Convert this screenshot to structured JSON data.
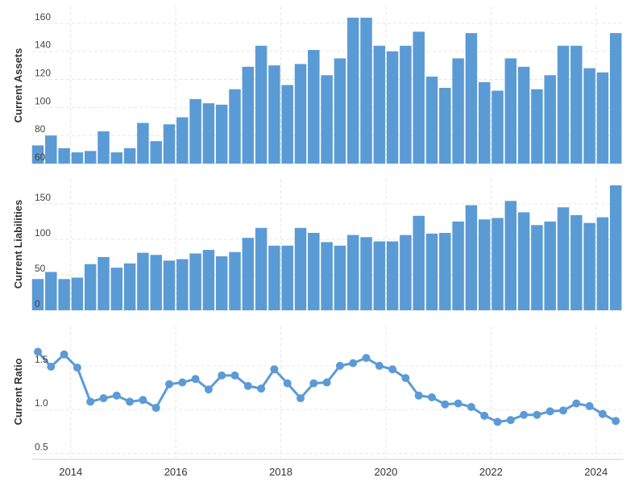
{
  "chart_data": [
    {
      "type": "bar",
      "ylabel": "Current Assets",
      "ylim": [
        60,
        172
      ],
      "yticks": [
        60,
        80,
        100,
        120,
        140,
        160
      ],
      "color": "#5b9bd5",
      "grid": true,
      "values": [
        73,
        80,
        71,
        68,
        69,
        83,
        68,
        71,
        89,
        76,
        88,
        93,
        106,
        103,
        102,
        113,
        129,
        144,
        130,
        116,
        131,
        141,
        123,
        135,
        164,
        164,
        144,
        140,
        144,
        154,
        122,
        114,
        135,
        153,
        118,
        112,
        135,
        129,
        113,
        123,
        144,
        144,
        128,
        125,
        153
      ]
    },
    {
      "type": "bar",
      "ylabel": "Current Liabilities",
      "ylim": [
        0,
        185
      ],
      "yticks": [
        0,
        50,
        100,
        150
      ],
      "color": "#5b9bd5",
      "grid": true,
      "values": [
        44,
        54,
        44,
        46,
        65,
        75,
        60,
        66,
        81,
        78,
        70,
        72,
        80,
        85,
        76,
        82,
        102,
        116,
        91,
        91,
        116,
        109,
        96,
        91,
        106,
        103,
        97,
        97,
        106,
        133,
        108,
        109,
        125,
        148,
        128,
        130,
        154,
        138,
        120,
        125,
        145,
        134,
        123,
        131,
        176
      ]
    },
    {
      "type": "line",
      "ylabel": "Current Ratio",
      "ylim": [
        0.45,
        1.95
      ],
      "yticks": [
        0.5,
        1.0,
        1.5
      ],
      "ytick_labels": [
        "0.5",
        "1.0",
        "1.5"
      ],
      "color": "#5b9bd5",
      "grid": true,
      "values": [
        1.66,
        1.49,
        1.63,
        1.48,
        1.09,
        1.13,
        1.16,
        1.09,
        1.11,
        1.02,
        1.29,
        1.31,
        1.35,
        1.23,
        1.39,
        1.39,
        1.27,
        1.24,
        1.46,
        1.3,
        1.13,
        1.3,
        1.31,
        1.5,
        1.53,
        1.59,
        1.5,
        1.46,
        1.36,
        1.16,
        1.14,
        1.06,
        1.07,
        1.03,
        0.93,
        0.86,
        0.88,
        0.94,
        0.94,
        0.98,
        0.99,
        1.07,
        1.04,
        0.95,
        0.87
      ]
    }
  ],
  "x_axis": {
    "labels": [
      "2014",
      "2016",
      "2018",
      "2020",
      "2022",
      "2024"
    ],
    "label_positions": [
      2.5,
      10.5,
      18.5,
      26.5,
      34.5,
      42.5
    ]
  }
}
